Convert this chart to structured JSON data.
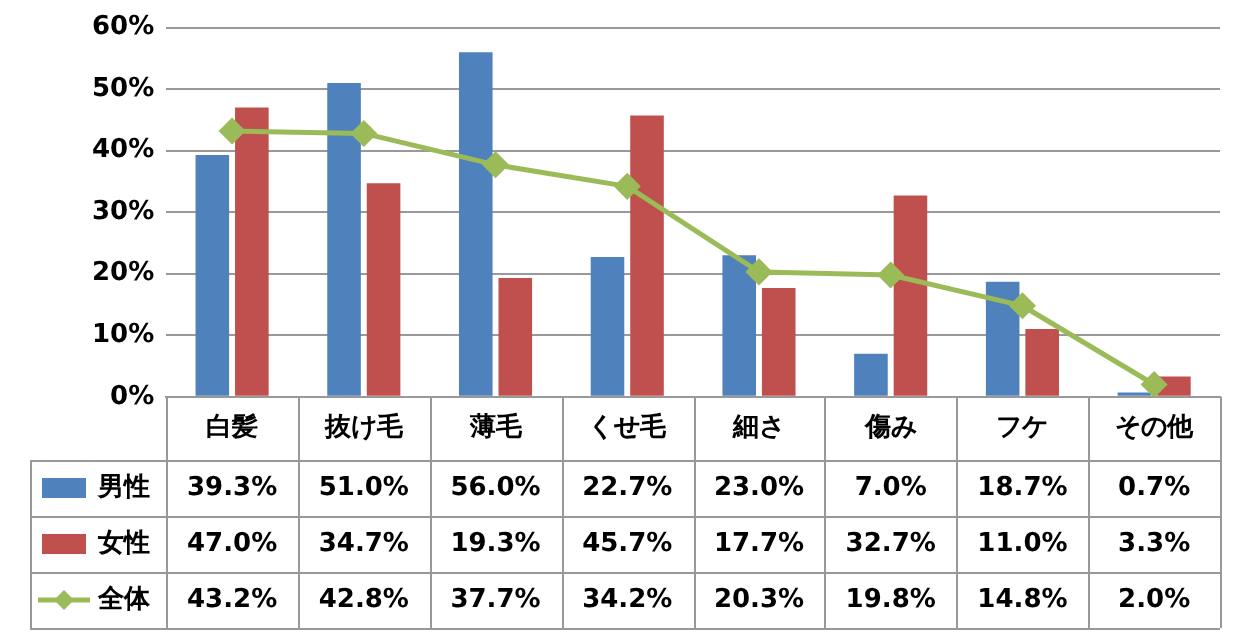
{
  "chart_data": {
    "type": "bar",
    "categories": [
      "白髪",
      "抜け毛",
      "薄毛",
      "くせ毛",
      "細さ",
      "傷み",
      "フケ",
      "その他"
    ],
    "series": [
      {
        "name": "男性",
        "color": "#4f81bd",
        "values": [
          39.3,
          51.0,
          56.0,
          22.7,
          23.0,
          7.0,
          18.7,
          0.7
        ],
        "value_labels": [
          "39.3%",
          "51.0%",
          "56.0%",
          "22.7%",
          "23.0%",
          "7.0%",
          "18.7%",
          "0.7%"
        ]
      },
      {
        "name": "女性",
        "color": "#c0504d",
        "values": [
          47.0,
          34.7,
          19.3,
          45.7,
          17.7,
          32.7,
          11.0,
          3.3
        ],
        "value_labels": [
          "47.0%",
          "34.7%",
          "19.3%",
          "45.7%",
          "17.7%",
          "32.7%",
          "11.0%",
          "3.3%"
        ]
      },
      {
        "name": "全体",
        "type": "line",
        "color": "#9bbb59",
        "values": [
          43.2,
          42.8,
          37.7,
          34.2,
          20.3,
          19.8,
          14.8,
          2.0
        ],
        "value_labels": [
          "43.2%",
          "42.8%",
          "37.7%",
          "34.2%",
          "20.3%",
          "19.8%",
          "14.8%",
          "2.0%"
        ]
      }
    ],
    "ylim": [
      0,
      60
    ],
    "yticks": [
      {
        "value": 0,
        "label": "0%"
      },
      {
        "value": 10,
        "label": "10%"
      },
      {
        "value": 20,
        "label": "20%"
      },
      {
        "value": 30,
        "label": "30%"
      },
      {
        "value": 40,
        "label": "40%"
      },
      {
        "value": 50,
        "label": "50%"
      },
      {
        "value": 60,
        "label": "60%"
      }
    ],
    "grid": "y",
    "legend": "bottom",
    "marker": "diamond",
    "line_style": "solid"
  }
}
